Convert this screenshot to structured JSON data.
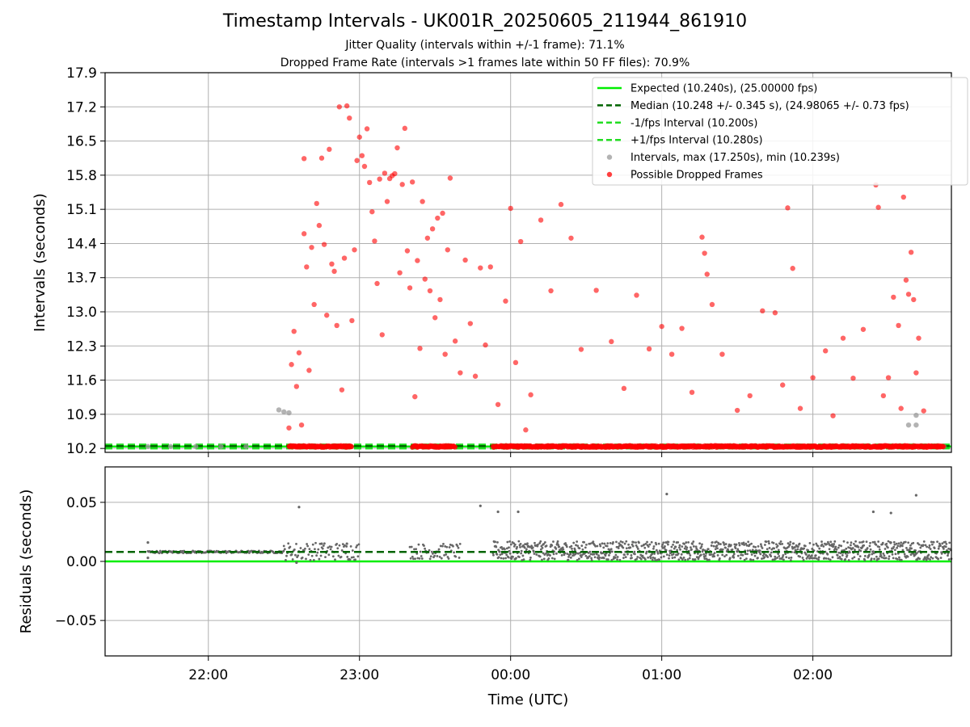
{
  "title": "Timestamp Intervals - UK001R_20250605_211944_861910",
  "subtitle1": "Jitter Quality (intervals within +/-1 frame): 71.1%",
  "subtitle2": "Dropped Frame Rate (intervals >1 frames late within 50 FF files): 70.9%",
  "colors": {
    "expected": "#00ee00",
    "median": "#006400",
    "limit": "#22dd22",
    "intervals": "#999999",
    "dropped": "#ff0000",
    "residuals": "#666666",
    "grid": "#b0b0b0"
  },
  "chart_data": [
    {
      "type": "scatter",
      "name": "intervals",
      "xlabel": "Time (UTC)",
      "ylabel": "Intervals (seconds)",
      "xlim": [
        "21:19",
        "02:55"
      ],
      "ylim": [
        10.12,
        17.9
      ],
      "yticks": [
        "10.2",
        "10.9",
        "11.6",
        "12.3",
        "13.0",
        "13.7",
        "14.4",
        "15.1",
        "15.8",
        "16.5",
        "17.2",
        "17.9"
      ],
      "grid": true,
      "legend_placement": "top-right",
      "legend": [
        "Expected (10.240s), (25.00000 fps)",
        "Median (10.248 +/- 0.345 s), (24.98065 +/- 0.73 fps)",
        "-1/fps Interval (10.200s)",
        "+1/fps Interval (10.280s)",
        "Intervals, max (17.250s), min (10.239s)",
        "Possible Dropped Frames"
      ],
      "lines": {
        "expected": 10.24,
        "median": 10.248,
        "minus_one_fps": 10.2,
        "plus_one_fps": 10.28
      },
      "intervals_points": [
        [
          "21:36",
          10.24
        ],
        [
          "21:45",
          10.24
        ],
        [
          "21:55",
          10.24
        ],
        [
          "22:05",
          10.24
        ],
        [
          "22:15",
          10.24
        ],
        [
          "22:28",
          10.99
        ],
        [
          "22:30",
          10.95
        ],
        [
          "22:32",
          10.93
        ],
        [
          "02:38",
          10.68
        ],
        [
          "02:41",
          10.68
        ],
        [
          "02:41",
          10.88
        ],
        [
          "02:47",
          10.24
        ],
        [
          "02:52",
          10.24
        ]
      ],
      "dropped_points_sample": [
        [
          "22:32",
          10.62
        ],
        [
          "22:33",
          11.92
        ],
        [
          "22:34",
          12.6
        ],
        [
          "22:35",
          11.47
        ],
        [
          "22:36",
          12.16
        ],
        [
          "22:37",
          10.68
        ],
        [
          "22:38",
          14.6
        ],
        [
          "22:38",
          16.14
        ],
        [
          "22:39",
          13.92
        ],
        [
          "22:40",
          11.8
        ],
        [
          "22:41",
          14.32
        ],
        [
          "22:42",
          13.15
        ],
        [
          "22:43",
          15.22
        ],
        [
          "22:44",
          14.77
        ],
        [
          "22:45",
          16.15
        ],
        [
          "22:46",
          14.38
        ],
        [
          "22:47",
          12.93
        ],
        [
          "22:48",
          16.33
        ],
        [
          "22:49",
          13.98
        ],
        [
          "22:50",
          13.83
        ],
        [
          "22:51",
          12.72
        ],
        [
          "22:52",
          17.2
        ],
        [
          "22:53",
          11.4
        ],
        [
          "22:54",
          14.1
        ],
        [
          "22:55",
          17.22
        ],
        [
          "22:56",
          16.97
        ],
        [
          "22:57",
          12.82
        ],
        [
          "22:58",
          14.27
        ],
        [
          "22:59",
          16.1
        ],
        [
          "23:00",
          16.58
        ],
        [
          "23:01",
          16.2
        ],
        [
          "23:02",
          15.98
        ],
        [
          "23:03",
          16.75
        ],
        [
          "23:04",
          15.65
        ],
        [
          "23:05",
          15.05
        ],
        [
          "23:06",
          14.45
        ],
        [
          "23:07",
          13.58
        ],
        [
          "23:08",
          15.72
        ],
        [
          "23:09",
          12.53
        ],
        [
          "23:10",
          15.84
        ],
        [
          "23:11",
          15.26
        ],
        [
          "23:12",
          15.73
        ],
        [
          "23:13",
          15.79
        ],
        [
          "23:14",
          15.83
        ],
        [
          "23:15",
          16.36
        ],
        [
          "23:16",
          13.8
        ],
        [
          "23:17",
          15.61
        ],
        [
          "23:18",
          16.76
        ],
        [
          "23:19",
          14.25
        ],
        [
          "23:20",
          13.49
        ],
        [
          "23:21",
          15.66
        ],
        [
          "23:22",
          11.26
        ],
        [
          "23:23",
          14.05
        ],
        [
          "23:24",
          12.25
        ],
        [
          "23:25",
          15.26
        ],
        [
          "23:26",
          13.67
        ],
        [
          "23:27",
          14.51
        ],
        [
          "23:28",
          13.43
        ],
        [
          "23:29",
          14.7
        ],
        [
          "23:30",
          12.88
        ],
        [
          "23:31",
          14.92
        ],
        [
          "23:32",
          13.25
        ],
        [
          "23:33",
          15.02
        ],
        [
          "23:34",
          12.13
        ],
        [
          "23:35",
          14.27
        ],
        [
          "23:36",
          15.74
        ],
        [
          "23:38",
          12.4
        ],
        [
          "23:40",
          11.75
        ],
        [
          "23:42",
          14.06
        ],
        [
          "23:44",
          12.76
        ],
        [
          "23:46",
          11.68
        ],
        [
          "23:48",
          13.9
        ],
        [
          "23:50",
          12.32
        ],
        [
          "23:52",
          13.92
        ],
        [
          "23:55",
          11.1
        ],
        [
          "23:58",
          13.22
        ],
        [
          "00:00",
          15.12
        ],
        [
          "00:02",
          11.96
        ],
        [
          "00:04",
          14.44
        ],
        [
          "00:06",
          10.58
        ],
        [
          "00:08",
          11.3
        ],
        [
          "00:12",
          14.88
        ],
        [
          "00:16",
          13.43
        ],
        [
          "00:20",
          15.2
        ],
        [
          "00:24",
          14.51
        ],
        [
          "00:28",
          12.23
        ],
        [
          "00:34",
          13.44
        ],
        [
          "00:40",
          12.39
        ],
        [
          "00:45",
          11.43
        ],
        [
          "00:50",
          13.34
        ],
        [
          "00:55",
          12.24
        ],
        [
          "01:00",
          12.7
        ],
        [
          "01:04",
          12.13
        ],
        [
          "01:08",
          12.66
        ],
        [
          "01:12",
          11.35
        ],
        [
          "01:16",
          14.53
        ],
        [
          "01:17",
          14.2
        ],
        [
          "01:18",
          13.77
        ],
        [
          "01:20",
          13.15
        ],
        [
          "01:24",
          12.13
        ],
        [
          "01:30",
          10.98
        ],
        [
          "01:35",
          11.28
        ],
        [
          "01:40",
          13.02
        ],
        [
          "01:45",
          12.98
        ],
        [
          "01:48",
          11.5
        ],
        [
          "01:50",
          15.13
        ],
        [
          "01:52",
          13.89
        ],
        [
          "01:55",
          11.02
        ],
        [
          "02:00",
          11.65
        ],
        [
          "02:05",
          12.2
        ],
        [
          "02:08",
          10.87
        ],
        [
          "02:12",
          12.46
        ],
        [
          "02:16",
          11.64
        ],
        [
          "02:20",
          12.64
        ],
        [
          "02:25",
          15.6
        ],
        [
          "02:26",
          15.14
        ],
        [
          "02:28",
          11.28
        ],
        [
          "02:30",
          11.65
        ],
        [
          "02:32",
          13.3
        ],
        [
          "02:34",
          12.72
        ],
        [
          "02:35",
          11.02
        ],
        [
          "02:36",
          15.35
        ],
        [
          "02:37",
          13.65
        ],
        [
          "02:38",
          13.36
        ],
        [
          "02:39",
          14.22
        ],
        [
          "02:40",
          13.25
        ],
        [
          "02:41",
          11.75
        ],
        [
          "02:42",
          12.46
        ],
        [
          "02:44",
          10.97
        ]
      ],
      "dropped_baseline_segments": [
        [
          "22:32",
          "22:57"
        ],
        [
          "23:21",
          "23:38"
        ],
        [
          "23:53",
          "02:52"
        ]
      ],
      "dropped_baseline_value": 10.24
    },
    {
      "type": "scatter",
      "name": "residuals",
      "xlabel": "Time (UTC)",
      "ylabel": "Residuals (seconds)",
      "xlim": [
        "21:19",
        "02:55"
      ],
      "ylim": [
        -0.08,
        0.08
      ],
      "yticks": [
        "−0.05",
        "0.00",
        "0.05"
      ],
      "xticks": [
        "22:00",
        "23:00",
        "00:00",
        "01:00",
        "02:00"
      ],
      "grid": true,
      "lines": {
        "zero": 0.0,
        "median": 0.008
      },
      "residual_bands": [
        {
          "from": "21:36",
          "to": "22:30",
          "lo": 0.007,
          "hi": 0.009
        },
        {
          "from": "22:30",
          "to": "23:00",
          "lo": 0.001,
          "hi": 0.016
        },
        {
          "from": "23:20",
          "to": "23:40",
          "lo": 0.002,
          "hi": 0.015
        },
        {
          "from": "23:53",
          "to": "02:55",
          "lo": 0.001,
          "hi": 0.017
        }
      ],
      "residual_outliers": [
        [
          "21:36",
          0.016
        ],
        [
          "21:36",
          0.003
        ],
        [
          "22:36",
          0.046
        ],
        [
          "23:48",
          0.047
        ],
        [
          "23:55",
          0.042
        ],
        [
          "00:03",
          0.042
        ],
        [
          "01:02",
          0.057
        ],
        [
          "02:24",
          0.042
        ],
        [
          "02:31",
          0.041
        ],
        [
          "02:41",
          0.056
        ],
        [
          "22:35",
          -0.001
        ],
        [
          "22:45",
          0.015
        ],
        [
          "22:55",
          0.015
        ]
      ]
    }
  ]
}
